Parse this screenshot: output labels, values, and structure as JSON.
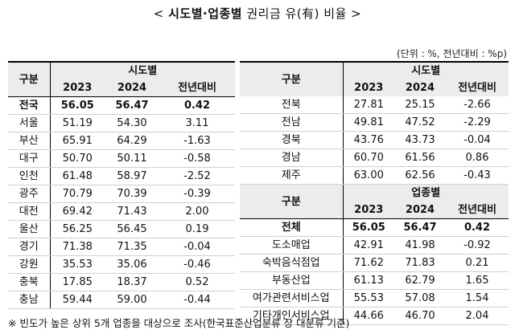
{
  "title": {
    "left": "< ",
    "bold": "시도별·업종별",
    "rest": " 권리금 유(有) 비율 >"
  },
  "unit": "(단위 : %, 전년대비 : %p)",
  "left_table": {
    "group_label": "구분",
    "group_header": "시도별",
    "columns": [
      "2023",
      "2024",
      "전년대비"
    ],
    "rows": [
      {
        "name": "전국",
        "v2023": "56.05",
        "v2024": "56.47",
        "diff": "0.42"
      },
      {
        "name": "서울",
        "v2023": "51.19",
        "v2024": "54.30",
        "diff": "3.11"
      },
      {
        "name": "부산",
        "v2023": "65.91",
        "v2024": "64.29",
        "diff": "-1.63"
      },
      {
        "name": "대구",
        "v2023": "50.70",
        "v2024": "50.11",
        "diff": "-0.58"
      },
      {
        "name": "인천",
        "v2023": "61.48",
        "v2024": "58.97",
        "diff": "-2.52"
      },
      {
        "name": "광주",
        "v2023": "70.79",
        "v2024": "70.39",
        "diff": "-0.39"
      },
      {
        "name": "대전",
        "v2023": "69.42",
        "v2024": "71.43",
        "diff": "2.00"
      },
      {
        "name": "울산",
        "v2023": "56.25",
        "v2024": "56.45",
        "diff": "0.19"
      },
      {
        "name": "경기",
        "v2023": "71.38",
        "v2024": "71.35",
        "diff": "-0.04"
      },
      {
        "name": "강원",
        "v2023": "35.53",
        "v2024": "35.06",
        "diff": "-0.46"
      },
      {
        "name": "충북",
        "v2023": "17.85",
        "v2024": "18.37",
        "diff": "0.52"
      },
      {
        "name": "충남",
        "v2023": "59.44",
        "v2024": "59.00",
        "diff": "-0.44"
      }
    ]
  },
  "right_table": {
    "group_label": "구분",
    "group_header": "시도별",
    "columns": [
      "2023",
      "2024",
      "전년대비"
    ],
    "rows": [
      {
        "name": "전북",
        "v2023": "27.81",
        "v2024": "25.15",
        "diff": "-2.66"
      },
      {
        "name": "전남",
        "v2023": "49.81",
        "v2024": "47.52",
        "diff": "-2.29"
      },
      {
        "name": "경북",
        "v2023": "43.76",
        "v2024": "43.73",
        "diff": "-0.04"
      },
      {
        "name": "경남",
        "v2023": "60.70",
        "v2024": "61.56",
        "diff": "0.86"
      },
      {
        "name": "제주",
        "v2023": "63.00",
        "v2024": "62.56",
        "diff": "-0.43"
      }
    ],
    "industry_label": "구분",
    "industry_header": "업종별",
    "industry_columns": [
      "2023",
      "2024",
      "전년대비"
    ],
    "industry_rows": [
      {
        "name": "전체",
        "v2023": "56.05",
        "v2024": "56.47",
        "diff": "0.42"
      },
      {
        "name": "도소매업",
        "v2023": "42.91",
        "v2024": "41.98",
        "diff": "-0.92"
      },
      {
        "name": "숙박음식점업",
        "v2023": "71.62",
        "v2024": "71.83",
        "diff": "0.21"
      },
      {
        "name": "부동산업",
        "v2023": "61.13",
        "v2024": "62.79",
        "diff": "1.65"
      },
      {
        "name": "여가관련서비스업",
        "v2023": "55.53",
        "v2024": "57.08",
        "diff": "1.54"
      },
      {
        "name": "기타개인서비스업",
        "v2023": "44.66",
        "v2024": "46.70",
        "diff": "2.04"
      }
    ]
  },
  "footnote": "※ 빈도가 높은 상위 5개 업종을 대상으로 조사(한국표준산업분류 상 대분류 기준)"
}
